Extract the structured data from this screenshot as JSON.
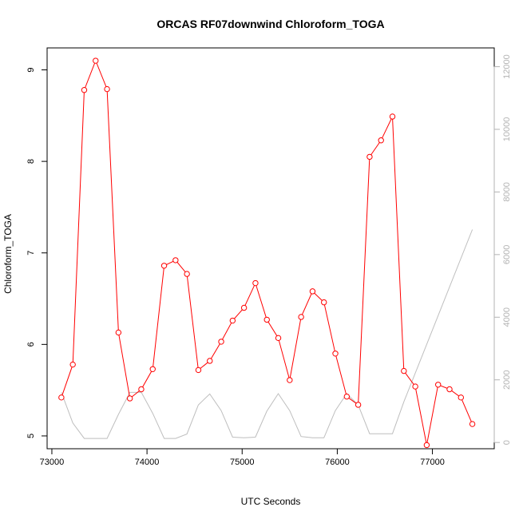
{
  "chart_data": {
    "type": "line",
    "title": "ORCAS RF07downwind Chloroform_TOGA",
    "xlabel": "UTC Seconds",
    "ylabel": "Chloroform_TOGA",
    "xlim": [
      72950,
      77650
    ],
    "ylim": [
      4.86,
      9.24
    ],
    "y2lim": [
      -200,
      12600
    ],
    "x_ticks": [
      73000,
      74000,
      75000,
      76000,
      77000
    ],
    "y_ticks": [
      5,
      6,
      7,
      8,
      9
    ],
    "y2_ticks": [
      0,
      2000,
      4000,
      6000,
      8000,
      10000,
      12000
    ],
    "grid": false,
    "series": [
      {
        "color": "#ff0000",
        "marker": "open-circle",
        "axis": "left",
        "x": [
          73100,
          73220,
          73340,
          73460,
          73580,
          73700,
          73820,
          73940,
          74060,
          74180,
          74300,
          74420,
          74540,
          74660,
          74780,
          74900,
          75020,
          75140,
          75260,
          75380,
          75500,
          75620,
          75740,
          75860,
          75980,
          76100,
          76220,
          76340,
          76460,
          76580,
          76700,
          76820,
          76940,
          77060,
          77180,
          77300,
          77420
        ],
        "y": [
          5.42,
          5.78,
          8.78,
          9.1,
          8.79,
          6.13,
          5.41,
          5.51,
          5.73,
          6.86,
          6.92,
          6.77,
          5.72,
          5.82,
          6.03,
          6.26,
          6.4,
          6.67,
          6.27,
          6.07,
          5.61,
          6.3,
          6.58,
          6.46,
          5.9,
          5.43,
          5.34,
          8.05,
          8.23,
          8.49,
          5.71,
          5.54,
          4.9,
          5.56,
          5.51,
          5.42,
          5.13
        ]
      },
      {
        "color": "#bebebe",
        "marker": "none",
        "axis": "right",
        "x": [
          73100,
          73220,
          73340,
          73460,
          73580,
          73700,
          73820,
          73940,
          74060,
          74180,
          74300,
          74420,
          74540,
          74660,
          74780,
          74900,
          75020,
          75140,
          75260,
          75380,
          75500,
          75620,
          75740,
          75860,
          75980,
          76100,
          76220,
          76340,
          76460,
          76580,
          76700,
          77420
        ],
        "y": [
          1600,
          620,
          130,
          130,
          130,
          900,
          1600,
          1600,
          930,
          130,
          130,
          270,
          1200,
          1550,
          1020,
          170,
          150,
          170,
          1000,
          1560,
          1020,
          190,
          150,
          150,
          1020,
          1560,
          1200,
          280,
          280,
          280,
          1300,
          6800
        ]
      }
    ]
  }
}
